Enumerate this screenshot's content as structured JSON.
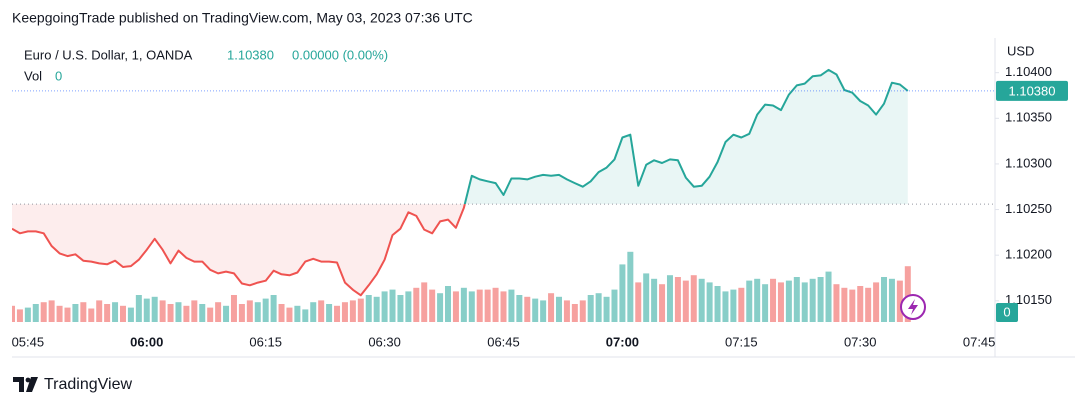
{
  "header": "KeepgoingTrade published on TradingView.com, May 03, 2023 07:36 UTC",
  "footer": "TradingView",
  "chart_data": {
    "type": "baseline",
    "title": "Euro / U.S. Dollar, 1, OANDA",
    "last_value_label": "1.10380",
    "change_label": "0.00000 (0.00%)",
    "volume_label": "Vol",
    "volume_value_label": "0",
    "currency": "USD",
    "categories": [
      "05:43",
      "05:44",
      "05:45",
      "05:46",
      "05:47",
      "05:48",
      "05:49",
      "05:50",
      "05:51",
      "05:52",
      "05:53",
      "05:54",
      "05:55",
      "05:56",
      "05:57",
      "05:58",
      "05:59",
      "06:00",
      "06:01",
      "06:02",
      "06:03",
      "06:04",
      "06:05",
      "06:06",
      "06:07",
      "06:08",
      "06:09",
      "06:10",
      "06:11",
      "06:12",
      "06:13",
      "06:14",
      "06:15",
      "06:16",
      "06:17",
      "06:18",
      "06:19",
      "06:20",
      "06:21",
      "06:22",
      "06:23",
      "06:24",
      "06:25",
      "06:26",
      "06:27",
      "06:28",
      "06:29",
      "06:30",
      "06:31",
      "06:32",
      "06:33",
      "06:34",
      "06:35",
      "06:36",
      "06:37",
      "06:38",
      "06:39",
      "06:40",
      "06:41",
      "06:42",
      "06:43",
      "06:44",
      "06:45",
      "06:46",
      "06:47",
      "06:48",
      "06:49",
      "06:50",
      "06:51",
      "06:52",
      "06:53",
      "06:54",
      "06:55",
      "06:56",
      "06:57",
      "06:58",
      "06:59",
      "07:00",
      "07:01",
      "07:02",
      "07:03",
      "07:04",
      "07:05",
      "07:06",
      "07:07",
      "07:08",
      "07:09",
      "07:10",
      "07:11",
      "07:12",
      "07:13",
      "07:14",
      "07:15",
      "07:16",
      "07:17",
      "07:18",
      "07:19",
      "07:20",
      "07:21",
      "07:22",
      "07:23",
      "07:24",
      "07:25",
      "07:26",
      "07:27",
      "07:28",
      "07:29",
      "07:30",
      "07:31",
      "07:32",
      "07:33",
      "07:34",
      "07:35",
      "07:36"
    ],
    "values": [
      1.10229,
      1.10224,
      1.10226,
      1.10226,
      1.10224,
      1.1021,
      1.10202,
      1.10199,
      1.10201,
      1.10194,
      1.10193,
      1.10191,
      1.1019,
      1.10194,
      1.10187,
      1.10188,
      1.10195,
      1.10206,
      1.10218,
      1.10206,
      1.10191,
      1.10205,
      1.10197,
      1.10193,
      1.10193,
      1.10184,
      1.1018,
      1.10182,
      1.1018,
      1.10169,
      1.10167,
      1.1017,
      1.10172,
      1.10183,
      1.10179,
      1.10178,
      1.10181,
      1.10193,
      1.10196,
      1.10193,
      1.10193,
      1.10192,
      1.1017,
      1.10162,
      1.10156,
      1.10167,
      1.10179,
      1.10195,
      1.10222,
      1.10229,
      1.10247,
      1.10243,
      1.10228,
      1.10224,
      1.10237,
      1.10239,
      1.1023,
      1.10252,
      1.10287,
      1.10283,
      1.10281,
      1.10279,
      1.10266,
      1.10284,
      1.10284,
      1.10283,
      1.10286,
      1.10288,
      1.10287,
      1.10288,
      1.10283,
      1.10279,
      1.10275,
      1.10281,
      1.10291,
      1.10296,
      1.10305,
      1.10329,
      1.10332,
      1.10276,
      1.10299,
      1.10304,
      1.10301,
      1.10305,
      1.10304,
      1.10285,
      1.10275,
      1.10276,
      1.10286,
      1.10302,
      1.10324,
      1.10332,
      1.10329,
      1.10333,
      1.10354,
      1.10365,
      1.10364,
      1.10359,
      1.10376,
      1.10386,
      1.10388,
      1.10396,
      1.10397,
      1.10403,
      1.10398,
      1.10381,
      1.10378,
      1.10369,
      1.10364,
      1.10354,
      1.10366,
      1.10389,
      1.10387,
      1.1038
    ],
    "volume": {
      "ylim": [
        0,
        100
      ],
      "values": [
        18,
        14,
        16,
        20,
        22,
        24,
        18,
        16,
        20,
        22,
        15,
        24,
        20,
        22,
        18,
        16,
        30,
        26,
        28,
        24,
        20,
        22,
        18,
        24,
        20,
        16,
        22,
        18,
        30,
        20,
        24,
        22,
        26,
        30,
        20,
        16,
        18,
        14,
        22,
        24,
        20,
        18,
        22,
        24,
        26,
        30,
        28,
        34,
        36,
        30,
        34,
        38,
        44,
        36,
        32,
        40,
        34,
        38,
        34,
        36,
        36,
        38,
        34,
        36,
        30,
        28,
        26,
        24,
        32,
        28,
        24,
        20,
        24,
        30,
        32,
        28,
        36,
        64,
        78,
        44,
        54,
        48,
        42,
        52,
        50,
        46,
        52,
        48,
        44,
        40,
        34,
        36,
        38,
        46,
        48,
        42,
        48,
        44,
        46,
        50,
        44,
        48,
        50,
        56,
        42,
        38,
        36,
        40,
        38,
        44,
        50,
        48,
        46,
        62
      ]
    },
    "baseline": 1.10256,
    "up_color": "#26a69a",
    "down_color": "#ef5350",
    "xlim": [
      "05:43",
      "07:47"
    ],
    "xticks": [
      "05:45",
      "06:00",
      "06:15",
      "06:30",
      "06:45",
      "07:00",
      "07:15",
      "07:30",
      "07:45"
    ],
    "ylim": [
      1.10118,
      1.10438
    ],
    "yticks": [
      {
        "value": 1.1015,
        "label": "1.10150"
      },
      {
        "value": 1.102,
        "label": "1.10200"
      },
      {
        "value": 1.1025,
        "label": "1.10250"
      },
      {
        "value": 1.103,
        "label": "1.10300"
      },
      {
        "value": 1.1035,
        "label": "1.10350"
      },
      {
        "value": 1.104,
        "label": "1.10400"
      }
    ]
  }
}
